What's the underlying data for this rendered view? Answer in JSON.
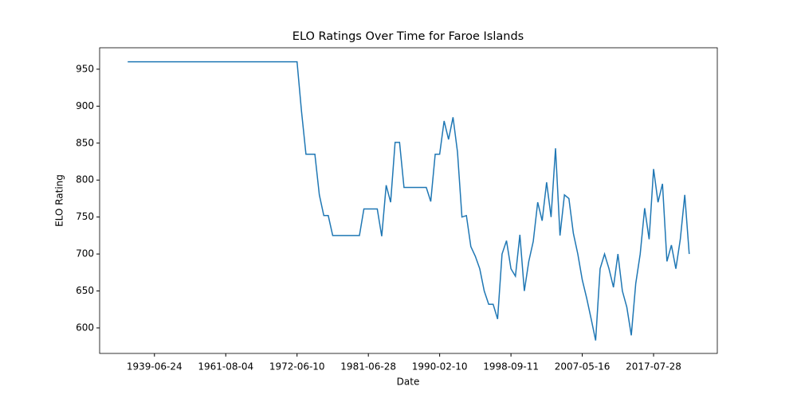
{
  "chart_data": {
    "type": "line",
    "title": "ELO Ratings Over Time for Faroe Islands",
    "x_label": "Date",
    "y_label": "ELO Rating",
    "categories": [
      null,
      null,
      null,
      null,
      null,
      null,
      "1939-06-24",
      null,
      null,
      null,
      null,
      null,
      null,
      null,
      null,
      null,
      null,
      null,
      null,
      null,
      null,
      null,
      "1961-08-04",
      null,
      null,
      null,
      null,
      null,
      null,
      null,
      null,
      null,
      null,
      null,
      null,
      null,
      null,
      null,
      "1972-06-10",
      null,
      null,
      null,
      null,
      null,
      null,
      null,
      null,
      null,
      null,
      null,
      null,
      null,
      null,
      null,
      "1981-06-28",
      null,
      null,
      null,
      null,
      null,
      null,
      null,
      null,
      null,
      null,
      null,
      null,
      null,
      null,
      null,
      "1990-02-10",
      null,
      null,
      null,
      null,
      null,
      null,
      null,
      null,
      null,
      null,
      null,
      null,
      null,
      null,
      null,
      "1998-09-11",
      null,
      null,
      null,
      null,
      null,
      null,
      null,
      null,
      null,
      null,
      null,
      null,
      null,
      null,
      null,
      "2007-05-16",
      null,
      null,
      null,
      null,
      null,
      null,
      null,
      null,
      null,
      null,
      null,
      null,
      null,
      null,
      null,
      "2017-07-28",
      null,
      null,
      null,
      null,
      null,
      null,
      null,
      null
    ],
    "series": [
      {
        "name": "Faroe Islands",
        "color": "#1f77b4",
        "values": [
          960,
          960,
          960,
          960,
          960,
          960,
          960,
          960,
          960,
          960,
          960,
          960,
          960,
          960,
          960,
          960,
          960,
          960,
          960,
          960,
          960,
          960,
          960,
          960,
          960,
          960,
          960,
          960,
          960,
          960,
          960,
          960,
          960,
          960,
          960,
          960,
          960,
          960,
          960,
          893,
          835,
          835,
          835,
          780,
          752,
          752,
          725,
          725,
          725,
          725,
          725,
          725,
          725,
          761,
          761,
          761,
          761,
          724,
          793,
          770,
          851,
          851,
          790,
          790,
          790,
          790,
          790,
          790,
          771,
          835,
          835,
          880,
          855,
          885,
          838,
          750,
          752,
          710,
          697,
          680,
          650,
          632,
          632,
          612,
          700,
          718,
          680,
          670,
          726,
          650,
          690,
          717,
          770,
          745,
          797,
          750,
          843,
          725,
          780,
          775,
          728,
          700,
          665,
          640,
          612,
          583,
          680,
          700,
          680,
          655,
          700,
          650,
          628,
          590,
          660,
          700,
          762,
          720,
          815,
          770,
          795,
          690,
          712,
          680,
          720,
          780,
          700
        ]
      }
    ],
    "ylim": [
      565.5,
      979
    ],
    "yticks": [
      600,
      650,
      700,
      750,
      800,
      850,
      900,
      950
    ]
  }
}
